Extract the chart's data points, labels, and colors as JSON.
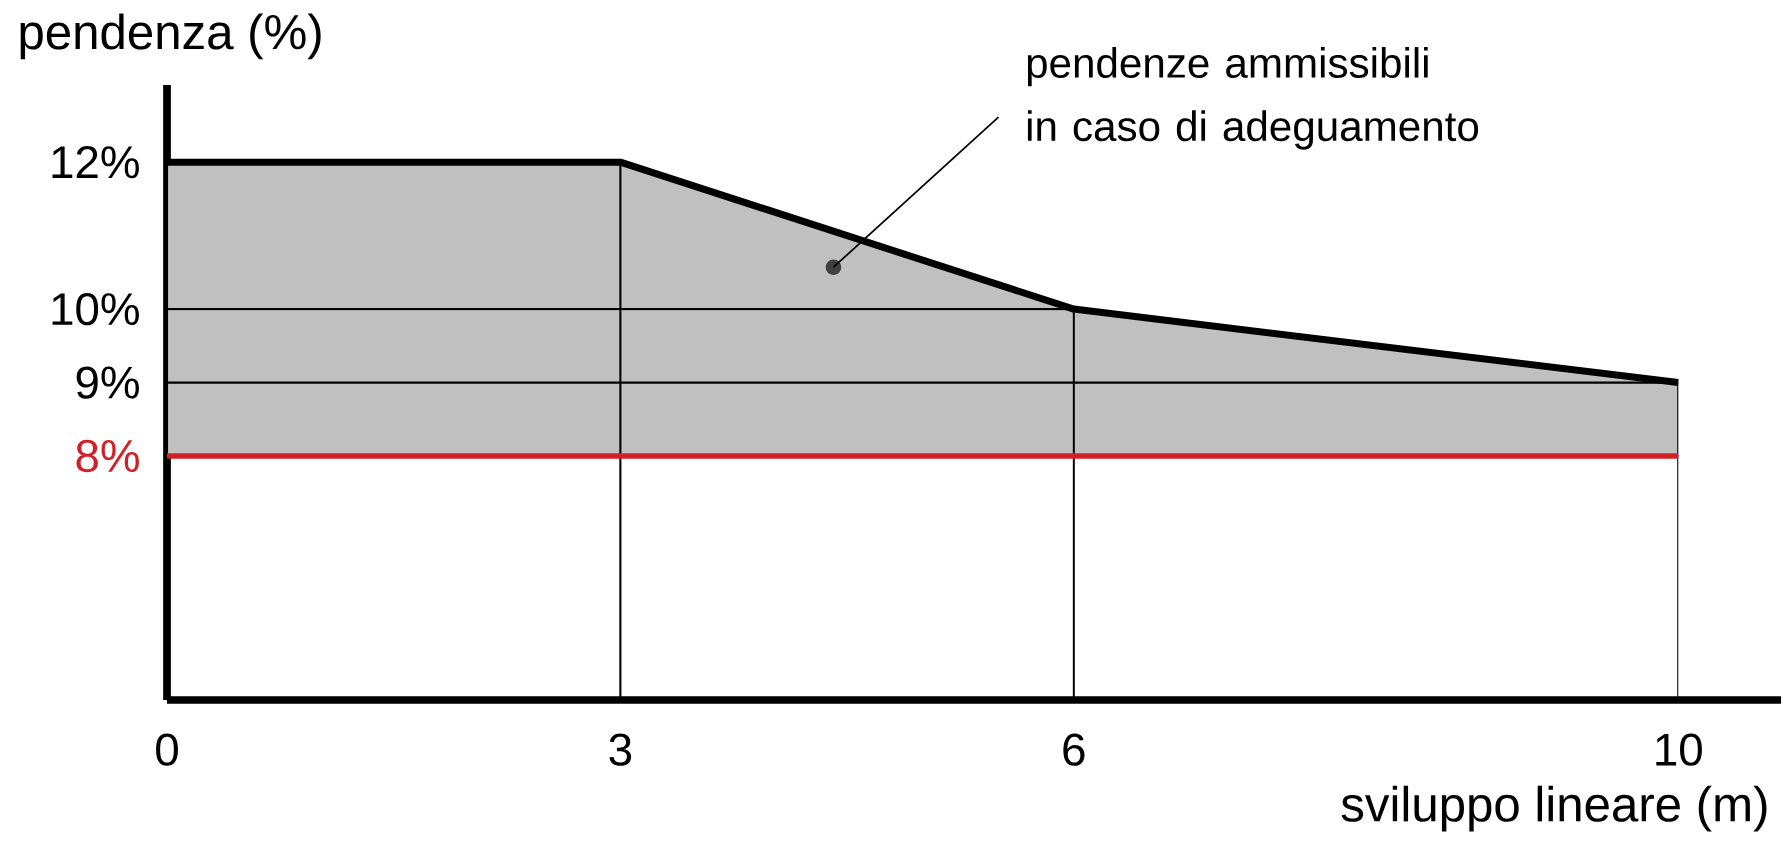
{
  "chart_data": {
    "type": "line",
    "xlabel": "sviluppo lineare (m)",
    "ylabel": "pendenza (%)",
    "x": [
      0,
      3,
      6,
      10
    ],
    "series": [
      {
        "color": "#000000",
        "values": [
          12,
          12,
          10,
          9
        ],
        "lower": [
          8,
          8,
          8,
          8
        ],
        "upper": [
          12,
          12,
          10,
          9
        ]
      }
    ],
    "xlim": [
      0,
      10.68
    ],
    "ylim": [
      4.68,
      13.05
    ],
    "xticks": [
      0,
      3,
      6,
      10
    ],
    "yticks": [
      {
        "value": 8,
        "label": "8%"
      },
      {
        "value": 9,
        "label": "9%"
      },
      {
        "value": 10,
        "label": "10%"
      },
      {
        "value": 12,
        "label": "12%"
      }
    ],
    "ref_lines": [
      {
        "axis": "y",
        "value": 8,
        "color": "#d32027"
      }
    ],
    "annotations": [
      {
        "text": "pendenze ammissibili\nin caso di adeguamento",
        "x": 4.41,
        "y": 10.57
      }
    ],
    "grid": true,
    "marker": "none",
    "line_style": "solid"
  }
}
